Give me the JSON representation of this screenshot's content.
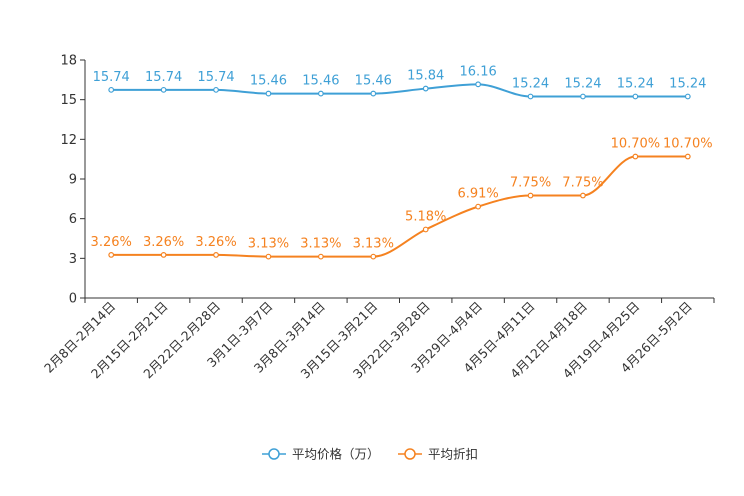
{
  "chart_data": {
    "type": "line",
    "title": "",
    "xlabel": "",
    "ylabel": "",
    "ylim": [
      0,
      18
    ],
    "yticks": [
      0,
      3,
      6,
      9,
      12,
      15,
      18
    ],
    "grid": false,
    "legend_position": "bottom-center",
    "categories": [
      "2月8日-2月14日",
      "2月15日-2月21日",
      "2月22日-2月28日",
      "3月1日-3月7日",
      "3月8日-3月14日",
      "3月15日-3月21日",
      "3月22日-3月28日",
      "3月29日-4月4日",
      "4月5日-4月11日",
      "4月12日-4月18日",
      "4月19日-4月25日",
      "4月26日-5月2日"
    ],
    "series": [
      {
        "name": "平均价格（万）",
        "color": "#3fa0d6",
        "values": [
          15.74,
          15.74,
          15.74,
          15.46,
          15.46,
          15.46,
          15.84,
          16.16,
          15.24,
          15.24,
          15.24,
          15.24
        ],
        "labels": [
          "15.74",
          "15.74",
          "15.74",
          "15.46",
          "15.46",
          "15.46",
          "15.84",
          "16.16",
          "15.24",
          "15.24",
          "15.24",
          "15.24"
        ]
      },
      {
        "name": "平均折扣",
        "color": "#f58220",
        "values": [
          3.26,
          3.26,
          3.26,
          3.13,
          3.13,
          3.13,
          5.18,
          6.91,
          7.75,
          7.75,
          10.7,
          10.7
        ],
        "labels": [
          "3.26%",
          "3.26%",
          "3.26%",
          "3.13%",
          "3.13%",
          "3.13%",
          "5.18%",
          "6.91%",
          "7.75%",
          "7.75%",
          "10.70%",
          "10.70%"
        ]
      }
    ]
  }
}
